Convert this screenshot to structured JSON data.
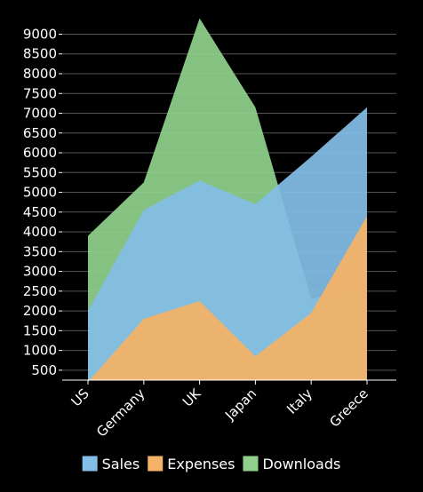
{
  "chart_data": {
    "type": "area",
    "categories": [
      "US",
      "Germany",
      "UK",
      "Japan",
      "Italy",
      "Greece"
    ],
    "series": [
      {
        "name": "Downloads",
        "values": [
          3900,
          5250,
          9400,
          7150,
          2300,
          2700
        ],
        "color": "#8fd18c"
      },
      {
        "name": "Sales",
        "values": [
          2000,
          4550,
          5300,
          4700,
          5900,
          7150
        ],
        "color": "#84bde6"
      },
      {
        "name": "Expenses",
        "values": [
          200,
          1800,
          2250,
          850,
          1950,
          4400
        ],
        "color": "#f4b266"
      }
    ],
    "legend": [
      "Sales",
      "Expenses",
      "Downloads"
    ],
    "y_ticks": [
      500,
      1000,
      1500,
      2000,
      2500,
      3000,
      3500,
      4000,
      4500,
      5000,
      5500,
      6000,
      6500,
      7000,
      7500,
      8000,
      8500,
      9000
    ],
    "ylim": [
      250,
      9550
    ],
    "grid": true,
    "legend_position": "bottom",
    "background": "#000000",
    "axis_color": "#ffffff",
    "grid_color": "#555555"
  }
}
